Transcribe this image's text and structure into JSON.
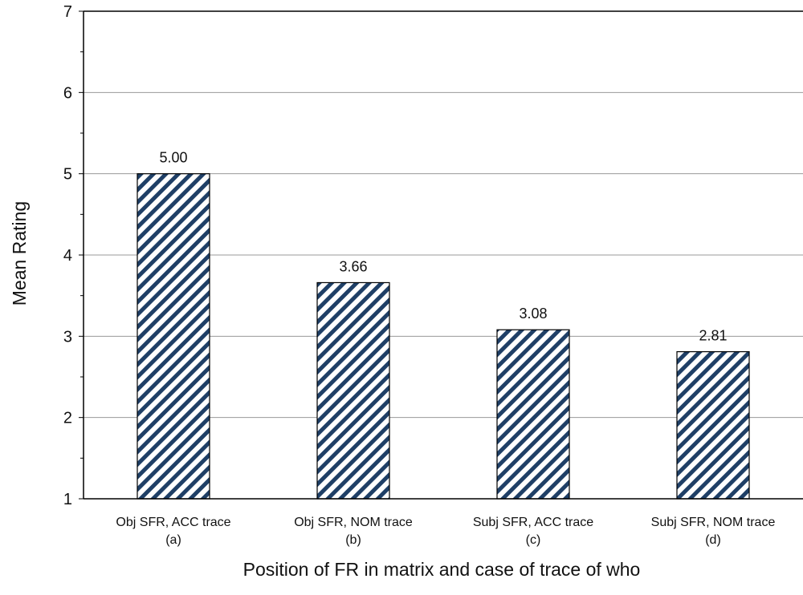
{
  "chart_data": {
    "type": "bar",
    "title": "",
    "xlabel": "Position of FR in matrix and case of trace of who",
    "ylabel": "Mean Rating",
    "ylim": [
      1,
      7
    ],
    "yticks": [
      1,
      2,
      3,
      4,
      5,
      6,
      7
    ],
    "grid": true,
    "categories": [
      {
        "line1": "Obj SFR, ACC trace",
        "line2": "(a)"
      },
      {
        "line1": "Obj SFR, NOM trace",
        "line2": "(b)"
      },
      {
        "line1": "Subj SFR, ACC trace",
        "line2": "(c)"
      },
      {
        "line1": "Subj SFR, NOM trace",
        "line2": "(d)"
      }
    ],
    "values": [
      5.0,
      3.66,
      3.08,
      2.81
    ],
    "value_labels": [
      "5.00",
      "3.66",
      "3.08",
      "2.81"
    ],
    "bar_style": {
      "pattern": "diagonal-stripes",
      "stripe_color": "#1f3f66",
      "fill": "#ffffff"
    }
  }
}
